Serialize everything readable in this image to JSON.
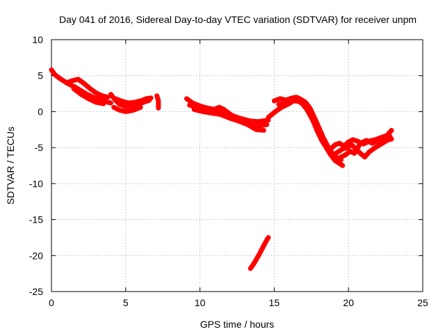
{
  "chart_data": {
    "type": "scatter",
    "title": "Day 041 of 2016, Sidereal Day-to-day VTEC variation (SDTVAR) for receiver unpm",
    "xlabel": "GPS time / hours",
    "ylabel": "SDTVAR / TECUs",
    "xlim": [
      0,
      25
    ],
    "ylim": [
      -25,
      10
    ],
    "xticks": [
      0,
      5,
      10,
      15,
      20,
      25
    ],
    "yticks": [
      -25,
      -20,
      -15,
      -10,
      -5,
      0,
      5,
      10
    ],
    "grid": true,
    "marker": "+",
    "color": "#ff0000",
    "series": [
      {
        "name": "main-1",
        "points": [
          [
            0.0,
            5.8
          ],
          [
            0.2,
            5.2
          ],
          [
            0.5,
            4.7
          ],
          [
            0.8,
            4.3
          ],
          [
            1.2,
            3.8
          ],
          [
            1.6,
            3.4
          ],
          [
            2.0,
            2.9
          ],
          [
            2.4,
            2.4
          ],
          [
            2.8,
            2.0
          ],
          [
            3.2,
            1.7
          ],
          [
            3.6,
            1.4
          ],
          [
            4.0,
            1.2
          ]
        ]
      },
      {
        "name": "main-2",
        "points": [
          [
            1.0,
            4.0
          ],
          [
            1.4,
            4.3
          ],
          [
            1.8,
            4.5
          ],
          [
            2.2,
            3.9
          ],
          [
            2.6,
            3.2
          ],
          [
            3.0,
            2.6
          ],
          [
            3.4,
            2.2
          ],
          [
            3.8,
            2.0
          ]
        ]
      },
      {
        "name": "main-3",
        "points": [
          [
            1.5,
            3.2
          ],
          [
            2.0,
            2.4
          ],
          [
            2.5,
            1.8
          ],
          [
            3.0,
            1.3
          ],
          [
            3.5,
            1.1
          ]
        ]
      },
      {
        "name": "main-4",
        "points": [
          [
            4.0,
            2.4
          ],
          [
            4.3,
            1.6
          ],
          [
            4.6,
            1.0
          ],
          [
            5.0,
            0.7
          ],
          [
            5.4,
            0.8
          ],
          [
            5.8,
            1.0
          ],
          [
            6.2,
            1.3
          ],
          [
            6.6,
            1.6
          ]
        ]
      },
      {
        "name": "main-5",
        "points": [
          [
            4.3,
            1.8
          ],
          [
            4.8,
            1.4
          ],
          [
            5.2,
            1.2
          ],
          [
            5.6,
            1.3
          ],
          [
            6.0,
            1.5
          ],
          [
            6.4,
            1.8
          ],
          [
            6.7,
            1.9
          ]
        ]
      },
      {
        "name": "main-6",
        "points": [
          [
            4.2,
            0.6
          ],
          [
            4.6,
            0.2
          ],
          [
            5.0,
            0.0
          ],
          [
            5.5,
            0.2
          ],
          [
            6.0,
            0.6
          ]
        ]
      },
      {
        "name": "main-7",
        "points": [
          [
            7.1,
            2.2
          ],
          [
            7.2,
            1.5
          ],
          [
            7.2,
            1.0
          ],
          [
            7.2,
            0.5
          ]
        ]
      },
      {
        "name": "main-8",
        "points": [
          [
            9.1,
            1.8
          ],
          [
            9.5,
            1.2
          ],
          [
            10.0,
            0.8
          ],
          [
            10.5,
            0.5
          ],
          [
            11.0,
            0.3
          ],
          [
            11.5,
            0.0
          ],
          [
            12.0,
            -0.4
          ],
          [
            12.5,
            -0.8
          ],
          [
            13.0,
            -1.1
          ],
          [
            13.5,
            -1.6
          ],
          [
            14.0,
            -2.0
          ],
          [
            14.5,
            -1.8
          ]
        ]
      },
      {
        "name": "main-9",
        "points": [
          [
            9.3,
            0.9
          ],
          [
            9.8,
            0.6
          ],
          [
            10.3,
            0.4
          ],
          [
            10.8,
            0.2
          ],
          [
            11.3,
            0.6
          ],
          [
            11.6,
            0.3
          ],
          [
            12.2,
            -0.6
          ],
          [
            12.8,
            -1.0
          ],
          [
            13.4,
            -1.3
          ],
          [
            13.9,
            -1.4
          ],
          [
            14.6,
            -1.2
          ]
        ]
      },
      {
        "name": "main-10",
        "points": [
          [
            9.6,
            0.3
          ],
          [
            10.2,
            0.0
          ],
          [
            10.8,
            -0.2
          ],
          [
            11.4,
            -0.4
          ],
          [
            12.0,
            -0.9
          ],
          [
            12.6,
            -1.3
          ],
          [
            13.2,
            -1.8
          ],
          [
            13.8,
            -2.5
          ],
          [
            14.3,
            -2.6
          ]
        ]
      },
      {
        "name": "main-11",
        "points": [
          [
            14.6,
            -0.8
          ],
          [
            14.9,
            -0.3
          ],
          [
            15.2,
            0.2
          ],
          [
            15.5,
            0.6
          ],
          [
            15.9,
            1.0
          ],
          [
            16.3,
            1.5
          ],
          [
            16.7,
            1.4
          ],
          [
            17.0,
            1.2
          ],
          [
            17.3,
            0.6
          ],
          [
            17.5,
            -0.3
          ],
          [
            17.8,
            -1.5
          ],
          [
            18.1,
            -3.0
          ],
          [
            18.4,
            -4.5
          ],
          [
            18.7,
            -5.6
          ],
          [
            19.0,
            -6.5
          ],
          [
            19.3,
            -7.0
          ],
          [
            19.6,
            -7.5
          ]
        ]
      },
      {
        "name": "main-12",
        "points": [
          [
            15.0,
            1.5
          ],
          [
            15.4,
            1.8
          ],
          [
            15.8,
            1.6
          ],
          [
            16.2,
            1.9
          ],
          [
            16.5,
            2.0
          ],
          [
            16.8,
            1.7
          ],
          [
            17.1,
            1.3
          ],
          [
            17.4,
            0.5
          ],
          [
            17.7,
            -0.8
          ],
          [
            18.0,
            -2.2
          ],
          [
            18.3,
            -3.6
          ],
          [
            18.6,
            -4.8
          ],
          [
            18.9,
            -5.8
          ],
          [
            19.2,
            -6.4
          ],
          [
            19.5,
            -6.7
          ]
        ]
      },
      {
        "name": "main-13",
        "points": [
          [
            15.3,
            1.0
          ],
          [
            15.7,
            1.2
          ],
          [
            16.1,
            1.4
          ],
          [
            16.5,
            1.6
          ],
          [
            16.9,
            1.1
          ],
          [
            17.2,
            0.3
          ],
          [
            17.6,
            -1.2
          ],
          [
            17.9,
            -2.7
          ],
          [
            18.2,
            -4.0
          ],
          [
            18.5,
            -5.0
          ],
          [
            18.8,
            -6.0
          ],
          [
            19.1,
            -6.8
          ],
          [
            19.4,
            -7.2
          ]
        ]
      },
      {
        "name": "main-14",
        "points": [
          [
            18.8,
            -5.2
          ],
          [
            19.1,
            -4.6
          ],
          [
            19.4,
            -4.4
          ],
          [
            19.7,
            -4.8
          ],
          [
            20.0,
            -4.2
          ],
          [
            20.3,
            -3.9
          ],
          [
            20.6,
            -4.1
          ],
          [
            21.0,
            -4.5
          ],
          [
            21.4,
            -4.1
          ],
          [
            21.8,
            -3.9
          ],
          [
            22.2,
            -3.6
          ],
          [
            22.6,
            -3.3
          ],
          [
            22.9,
            -2.6
          ]
        ]
      },
      {
        "name": "main-15",
        "points": [
          [
            19.0,
            -6.0
          ],
          [
            19.3,
            -5.6
          ],
          [
            19.6,
            -5.2
          ],
          [
            19.9,
            -5.0
          ],
          [
            20.2,
            -4.6
          ],
          [
            20.5,
            -5.2
          ],
          [
            20.8,
            -5.8
          ],
          [
            21.1,
            -6.3
          ],
          [
            21.4,
            -5.6
          ],
          [
            21.8,
            -5.0
          ],
          [
            22.2,
            -4.5
          ],
          [
            22.6,
            -4.0
          ],
          [
            22.9,
            -3.8
          ]
        ]
      },
      {
        "name": "main-16",
        "points": [
          [
            19.2,
            -6.6
          ],
          [
            19.5,
            -6.3
          ],
          [
            19.8,
            -6.0
          ],
          [
            20.1,
            -5.5
          ],
          [
            20.4,
            -5.8
          ],
          [
            20.8,
            -4.4
          ],
          [
            21.2,
            -4.0
          ],
          [
            21.6,
            -4.4
          ],
          [
            22.0,
            -4.0
          ],
          [
            22.4,
            -3.8
          ],
          [
            22.8,
            -3.5
          ]
        ]
      },
      {
        "name": "outlier",
        "points": [
          [
            13.4,
            -21.8
          ],
          [
            13.6,
            -21.2
          ],
          [
            13.8,
            -20.5
          ],
          [
            14.0,
            -19.8
          ],
          [
            14.2,
            -19.0
          ],
          [
            14.4,
            -18.2
          ],
          [
            14.6,
            -17.5
          ]
        ]
      }
    ]
  }
}
